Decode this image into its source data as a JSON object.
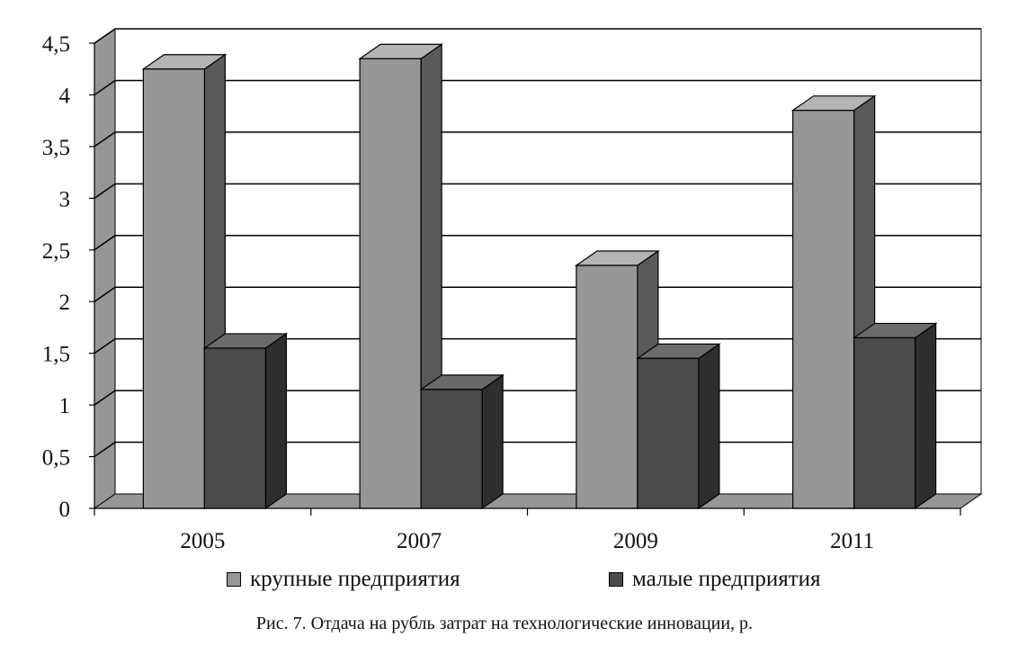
{
  "chart_data": {
    "type": "bar",
    "categories": [
      "2005",
      "2007",
      "2009",
      "2011"
    ],
    "series": [
      {
        "name": "крупные предприятия",
        "values": [
          4.25,
          4.35,
          2.35,
          3.85
        ]
      },
      {
        "name": "малые предприятия",
        "values": [
          1.55,
          1.15,
          1.45,
          1.65
        ]
      }
    ],
    "y_ticks": [
      "0",
      "0,5",
      "1",
      "1,5",
      "2",
      "2,5",
      "3",
      "3,5",
      "4",
      "4,5"
    ],
    "ylim": [
      0,
      4.5
    ],
    "grid": true,
    "three_d": true,
    "legend_position": "bottom",
    "caption": "Рис. 7. Отдача на рубль затрат на технологические инновации, р.",
    "colors": {
      "series_1": "#969696",
      "series_2": "#4a4a4a",
      "wall": "#ffffff",
      "floor": "#969696",
      "side_wall": "#969696"
    }
  }
}
